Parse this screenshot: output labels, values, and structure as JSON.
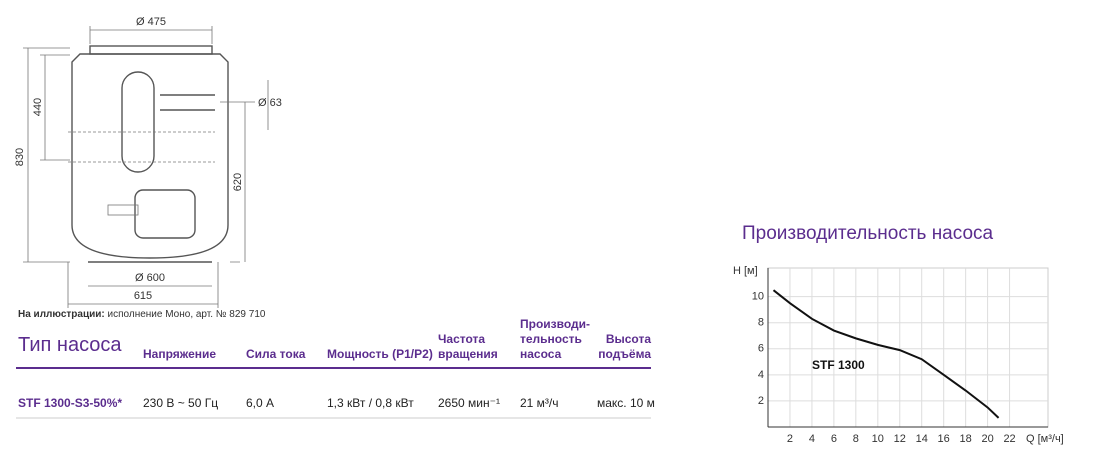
{
  "drawing": {
    "labels": [
      "Ø 475",
      "440",
      "830",
      "Ø 63",
      "620",
      "Ø 600",
      "615"
    ]
  },
  "caption": {
    "bold": "На иллюстрации:",
    "text": "исполнение Моно, арт. № 829 710"
  },
  "table": {
    "header": [
      "Тип насоса",
      "Напряжение",
      "Сила тока",
      "Мощность (P1/P2)",
      "Частота\nвращения",
      "Производи-\nтельность\nнасоса",
      "Высота\nподъёма"
    ],
    "rows": [
      [
        "STF 1300-S3-50%*",
        "230 В ~ 50 Гц",
        "6,0 А",
        "1,3 кВт / 0,8 кВт",
        "2650 мин⁻¹",
        "21 м³/ч",
        "макс. 10 м"
      ]
    ]
  },
  "chart_data": {
    "type": "line",
    "title": "Производительность насоса",
    "x_label": "Q [м³/ч]",
    "y_label": "H [м]",
    "x": [
      0.5,
      2,
      4,
      6,
      8,
      10,
      12,
      14,
      16,
      18,
      20,
      21
    ],
    "series": [
      {
        "name": "STF 1300",
        "color": "#111111",
        "values": [
          10.5,
          9.5,
          8.3,
          7.4,
          6.8,
          6.3,
          5.9,
          5.2,
          4.0,
          2.8,
          1.5,
          0.7
        ]
      }
    ],
    "xlim": [
      0,
      25.5
    ],
    "ylim": [
      0,
      12.2
    ],
    "xticks": [
      2,
      4,
      6,
      8,
      10,
      12,
      14,
      16,
      18,
      20,
      22
    ],
    "yticks": [
      2,
      4,
      6,
      8,
      10
    ],
    "grid": true
  }
}
